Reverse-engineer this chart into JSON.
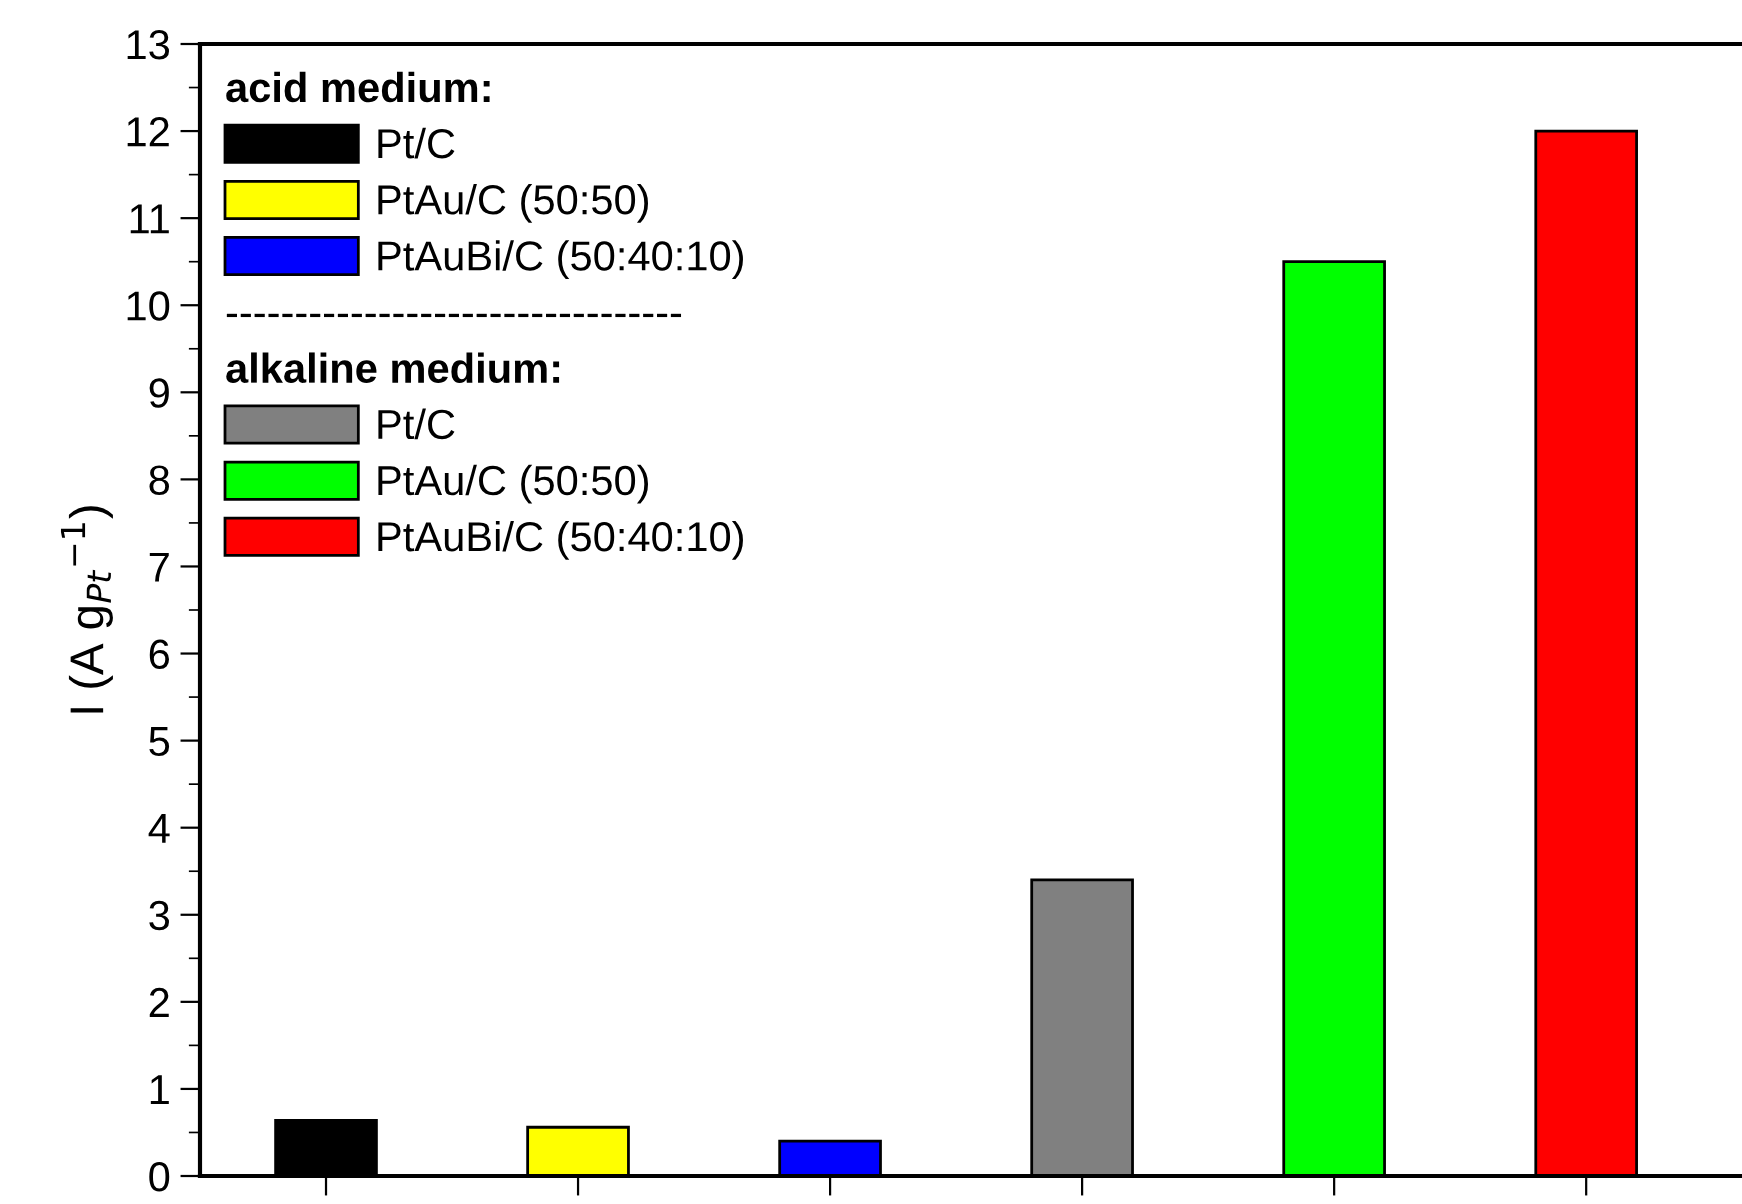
{
  "chart_data": {
    "type": "bar",
    "ylabel": "I (A g$_{Pt}$$^{−1}$)",
    "categories": [
      null,
      null,
      null,
      null,
      null,
      null
    ],
    "series": [
      {
        "name": "Pt/C",
        "color": "#000000",
        "values": [
          0.64,
          null,
          null,
          null,
          null,
          null
        ]
      },
      {
        "name": "PtAu/C (50:50)",
        "color": "#ffff00",
        "values": [
          null,
          0.56,
          null,
          null,
          null,
          null
        ]
      },
      {
        "name": "PtAuBi/C (50:40:10)",
        "color": "#0000ff",
        "values": [
          null,
          null,
          0.4,
          null,
          null,
          null
        ]
      },
      {
        "name": "Pt/C",
        "color": "#808080",
        "values": [
          null,
          null,
          null,
          3.4,
          null,
          null
        ]
      },
      {
        "name": "PtAu/C (50:50)",
        "color": "#00ff00",
        "values": [
          null,
          null,
          null,
          null,
          10.5,
          null
        ]
      },
      {
        "name": "PtAuBi/C (50:40:10)",
        "color": "#ff0000",
        "values": [
          null,
          null,
          null,
          null,
          null,
          12.0
        ]
      }
    ],
    "annotations": [
      "acid medium:",
      "---------------------------------",
      "alkaline medium:"
    ],
    "ylim": [
      0,
      13
    ],
    "yticks": [
      0,
      1,
      2,
      3,
      4,
      5,
      6,
      7,
      8,
      9,
      10,
      11,
      12,
      13
    ],
    "grid": false,
    "legend": "top left"
  }
}
